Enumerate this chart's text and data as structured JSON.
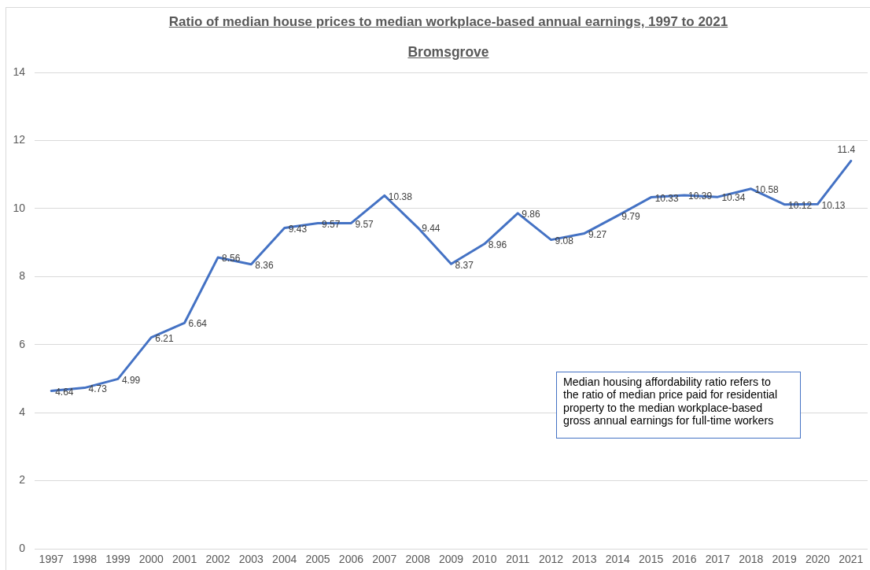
{
  "chart_data": {
    "type": "line",
    "title": "Ratio of median house prices to median workplace-based annual earnings, 1997 to 2021",
    "subtitle": "Bromsgrove",
    "categories": [
      "1997",
      "1998",
      "1999",
      "2000",
      "2001",
      "2002",
      "2003",
      "2004",
      "2005",
      "2006",
      "2007",
      "2008",
      "2009",
      "2010",
      "2011",
      "2012",
      "2013",
      "2014",
      "2015",
      "2016",
      "2017",
      "2018",
      "2019",
      "2020",
      "2021"
    ],
    "series": [
      {
        "color": "#4472c4",
        "values": [
          4.64,
          4.73,
          4.99,
          6.21,
          6.64,
          8.56,
          8.36,
          9.43,
          9.57,
          9.57,
          10.38,
          9.44,
          8.37,
          8.96,
          9.86,
          9.08,
          9.27,
          9.79,
          10.33,
          10.39,
          10.34,
          10.58,
          10.12,
          10.13,
          11.4
        ]
      }
    ],
    "ylim": [
      0,
      14
    ],
    "yticks": [
      0,
      2,
      4,
      6,
      8,
      10,
      12,
      14
    ],
    "grid": "y",
    "marker": "none",
    "line_style": "solid",
    "data_labels": true,
    "annotations": [
      "Median housing affordability ratio refers to the ratio of median price paid for residential property to the median workplace-based gross annual earnings for full-time workers"
    ]
  }
}
